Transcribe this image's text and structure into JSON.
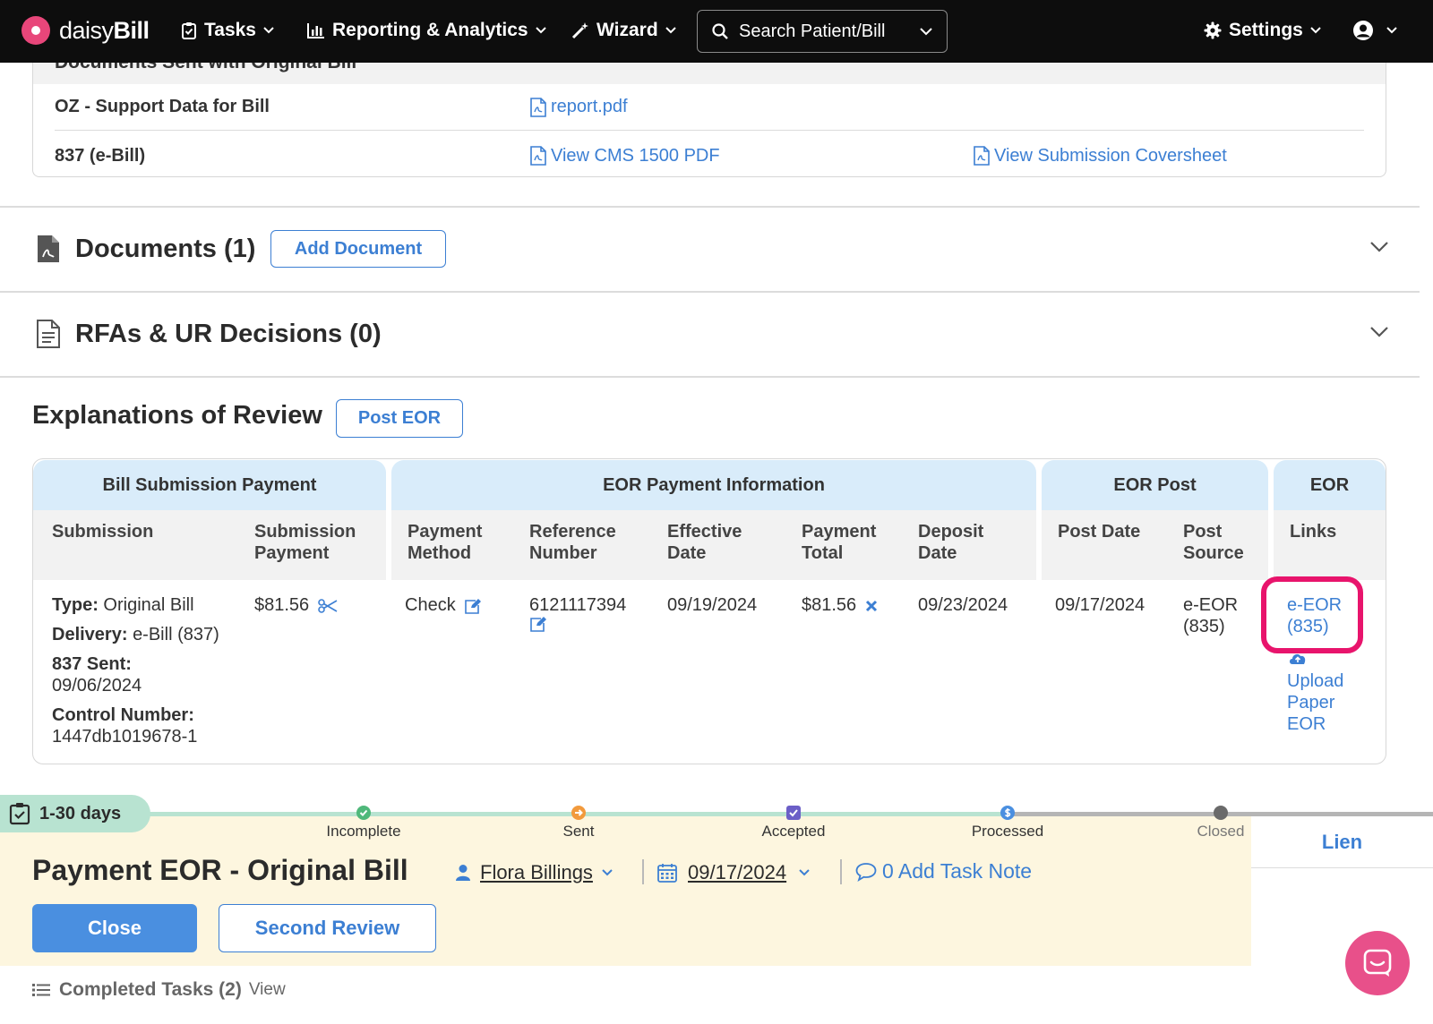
{
  "nav": {
    "logo_text_light": "daisy",
    "logo_text_bold": "Bill",
    "tasks": "Tasks",
    "reporting": "Reporting & Analytics",
    "wizard": "Wizard",
    "search_placeholder": "Search Patient/Bill",
    "settings": "Settings"
  },
  "sent_docs": {
    "header": "Documents Sent with Original Bill",
    "rows": [
      {
        "label": "OZ - Support Data for Bill",
        "link1": "report.pdf"
      },
      {
        "label": "837 (e-Bill)",
        "link1": "View CMS 1500 PDF",
        "link2": "View Submission Coversheet"
      }
    ]
  },
  "documents": {
    "title": "Documents (1)",
    "button": "Add Document"
  },
  "rfas": {
    "title": "RFAs & UR Decisions (0)"
  },
  "eor": {
    "title": "Explanations of Review",
    "button": "Post EOR",
    "groups": [
      "Bill Submission Payment",
      "EOR Payment Information",
      "EOR Post",
      "EOR"
    ],
    "columns": {
      "submission": "Submission",
      "submission_payment": [
        "Submission",
        "Payment"
      ],
      "payment_method": [
        "Payment",
        "Method"
      ],
      "reference_number": [
        "Reference",
        "Number"
      ],
      "effective_date": [
        "Effective",
        "Date"
      ],
      "payment_total": [
        "Payment",
        "Total"
      ],
      "deposit_date": [
        "Deposit",
        "Date"
      ],
      "post_date": "Post Date",
      "post_source": [
        "Post",
        "Source"
      ],
      "links": "Links"
    },
    "row": {
      "type_label": "Type:",
      "type_value": "Original Bill",
      "delivery_label": "Delivery:",
      "delivery_value": "e-Bill (837)",
      "sent_label": "837 Sent:",
      "sent_value": "09/06/2024",
      "control_label": "Control Number:",
      "control_value": "1447db1019678-1",
      "submission_payment": "$81.56",
      "payment_method": "Check",
      "reference_number": "6121117394",
      "effective_date": "09/19/2024",
      "payment_total": "$81.56",
      "deposit_date": "09/23/2024",
      "post_date": "09/17/2024",
      "post_source": [
        "e-EOR",
        "(835)"
      ],
      "eeor_link": [
        "e-EOR",
        "(835)"
      ],
      "upload_link": [
        "Upload",
        "Paper",
        "EOR"
      ]
    }
  },
  "task": {
    "days": "1-30 days",
    "steps": [
      "Incomplete",
      "Sent",
      "Accepted",
      "Processed",
      "Closed"
    ],
    "title": "Payment EOR - Original Bill",
    "assignee": "Flora Billings",
    "date": "09/17/2024",
    "note": "0 Add Task Note",
    "close_button": "Close",
    "second_button": "Second Review",
    "lien_tab": "Lien"
  },
  "completed": {
    "label": "Completed Tasks (2)",
    "view": "View"
  },
  "colors": {
    "accent": "#3c7fd3",
    "brand_pink": "#e8467a",
    "highlight": "#e8146c",
    "panel_bg": "#fdf6df",
    "progress_green": "#b8e3d1"
  }
}
